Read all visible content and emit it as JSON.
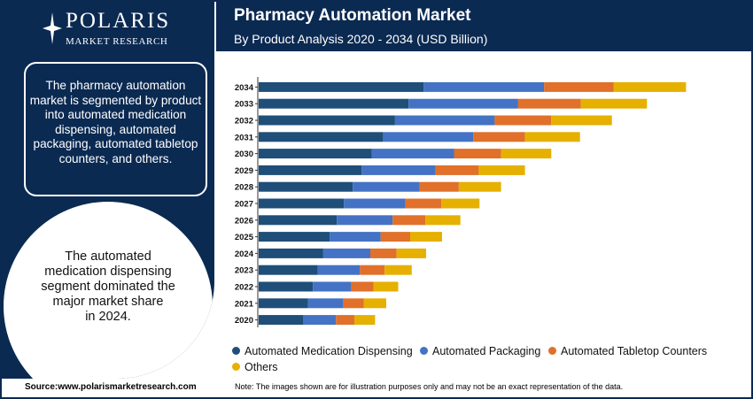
{
  "logo": {
    "name": "POLARIS",
    "tagline": "MARKET RESEARCH"
  },
  "header": {
    "title": "Pharmacy Automation Market",
    "subtitle": "By Product Analysis 2020 - 2034 (USD Billion)"
  },
  "left_panel": {
    "segmentation_text": "The pharmacy automation market is segmented by product into automated medication dispensing, automated packaging, automated tabletop counters, and others.",
    "share_text_lines": [
      "The automated",
      "medication dispensing",
      "segment dominated the",
      "major market share",
      "in 2024."
    ]
  },
  "colors": {
    "navy": "#0b2a52",
    "dispensing": "#1f4e79",
    "packaging": "#4472c4",
    "tabletop": "#e0702a",
    "others": "#e6b000"
  },
  "chart_data": {
    "type": "bar",
    "orientation": "horizontal",
    "stacked": true,
    "categories": [
      "2034",
      "2033",
      "2032",
      "2031",
      "2030",
      "2029",
      "2028",
      "2027",
      "2026",
      "2025",
      "2024",
      "2023",
      "2022",
      "2021",
      "2020"
    ],
    "series": [
      {
        "name": "Automated Medication Dispensing",
        "color": "#1f4e79",
        "values": [
          207,
          188,
          171,
          156,
          142,
          129,
          118,
          107,
          98,
          89,
          81,
          74,
          68,
          62,
          56
        ]
      },
      {
        "name": "Automated Packaging",
        "color": "#4472c4",
        "values": [
          151,
          137,
          125,
          113,
          103,
          93,
          84,
          77,
          70,
          64,
          59,
          53,
          48,
          44,
          41
        ]
      },
      {
        "name": "Automated Tabletop Counters",
        "color": "#e0702a",
        "values": [
          87,
          79,
          71,
          65,
          59,
          54,
          49,
          45,
          41,
          37,
          33,
          31,
          28,
          26,
          23
        ]
      },
      {
        "name": "Others",
        "color": "#e6b000",
        "values": [
          91,
          83,
          76,
          69,
          63,
          58,
          53,
          48,
          44,
          40,
          37,
          34,
          31,
          28,
          26
        ]
      }
    ],
    "grid": false,
    "legend_position": "bottom"
  },
  "footer": {
    "source": "Source:www.polarismarketresearch.com",
    "note": "Note: The images shown are for illustration purposes only and may not be an exact representation of the data."
  }
}
